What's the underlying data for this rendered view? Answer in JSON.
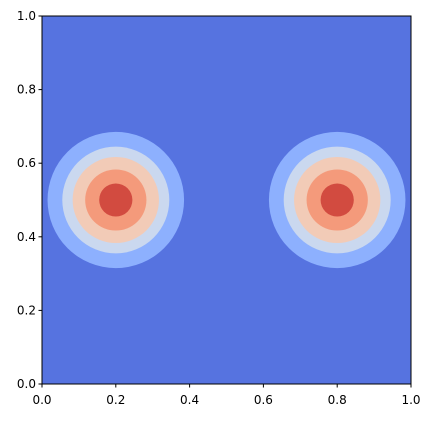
{
  "chart_data": {
    "type": "contour",
    "xlim": [
      0,
      1
    ],
    "ylim": [
      0,
      1
    ],
    "xticks": [
      {
        "value": 0,
        "label": "0.0"
      },
      0.2,
      0.4,
      0.6,
      0.8,
      {
        "value": 1,
        "label": "1.0"
      }
    ],
    "yticks": [
      {
        "value": 0,
        "label": "0.0"
      },
      0.2,
      0.4,
      0.6,
      0.8,
      {
        "value": 1,
        "label": "1.0"
      }
    ],
    "background_color": "#5673e0",
    "centers": [
      {
        "x": 0.2,
        "y": 0.5
      },
      {
        "x": 0.8,
        "y": 0.5
      }
    ],
    "levels": [
      {
        "radius": 0.185,
        "color": "#8db0fe"
      },
      {
        "radius": 0.145,
        "color": "#cad8ef"
      },
      {
        "radius": 0.117,
        "color": "#f2cbb7"
      },
      {
        "radius": 0.083,
        "color": "#f49a7b"
      },
      {
        "radius": 0.045,
        "color": "#d24b40"
      }
    ]
  }
}
